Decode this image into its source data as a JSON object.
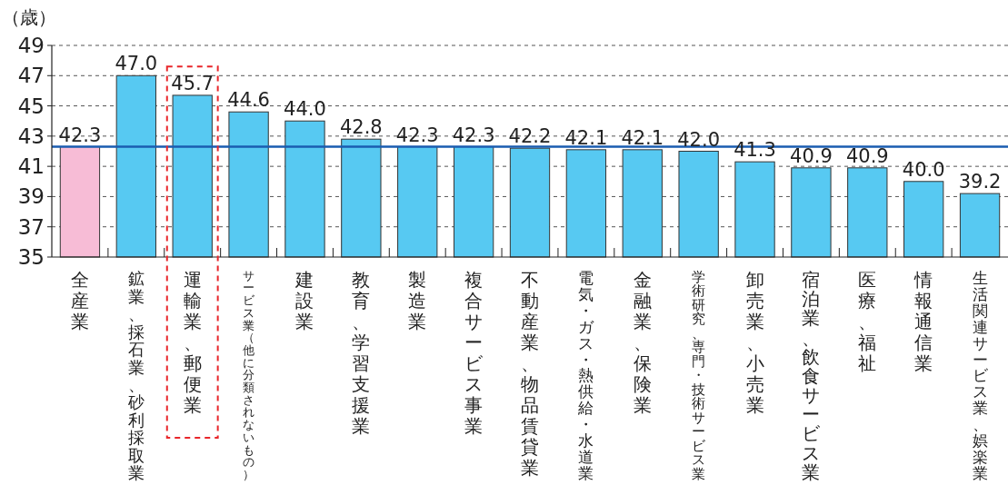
{
  "chart_data": {
    "type": "bar",
    "ylabel": "（歳）",
    "categories": [
      "全産業",
      "鉱業、採石業、砂利採取業",
      "運輸業、郵便業",
      "サービス業（他に分類されないもの）",
      "建設業",
      "教育、学習支援業",
      "製造業",
      "複合サービス事業",
      "不動産業、物品賃貸業",
      "電気・ガス・熱供給・水道業",
      "金融業、保険業",
      "学術研究、専門・技術サービス業",
      "卸売業、小売業",
      "宿泊業、飲食サービス業",
      "医療、福祉",
      "情報通信業",
      "生活関連サービス業、娯楽業"
    ],
    "values": [
      42.3,
      47.0,
      45.7,
      44.6,
      44.0,
      42.8,
      42.3,
      42.3,
      42.2,
      42.1,
      42.1,
      42.0,
      41.3,
      40.9,
      40.9,
      40.0,
      39.2
    ],
    "colors": [
      "#f7bcd6",
      "#57c9f2",
      "#57c9f2",
      "#57c9f2",
      "#57c9f2",
      "#57c9f2",
      "#57c9f2",
      "#57c9f2",
      "#57c9f2",
      "#57c9f2",
      "#57c9f2",
      "#57c9f2",
      "#57c9f2",
      "#57c9f2",
      "#57c9f2",
      "#57c9f2",
      "#57c9f2"
    ],
    "value_labels": [
      "42.3",
      "47.0",
      "45.7",
      "44.6",
      "44.0",
      "42.8",
      "42.3",
      "42.3",
      "42.2",
      "42.1",
      "42.1",
      "42.0",
      "41.3",
      "40.9",
      "40.9",
      "40.0",
      "39.2"
    ],
    "ylim": [
      35,
      49
    ],
    "yticks": [
      35,
      37,
      39,
      41,
      43,
      45,
      47,
      49
    ],
    "grid": "y",
    "ref_lines": [
      {
        "axis": "y",
        "value": 42.3,
        "color": "#1a5cb0"
      }
    ]
  }
}
